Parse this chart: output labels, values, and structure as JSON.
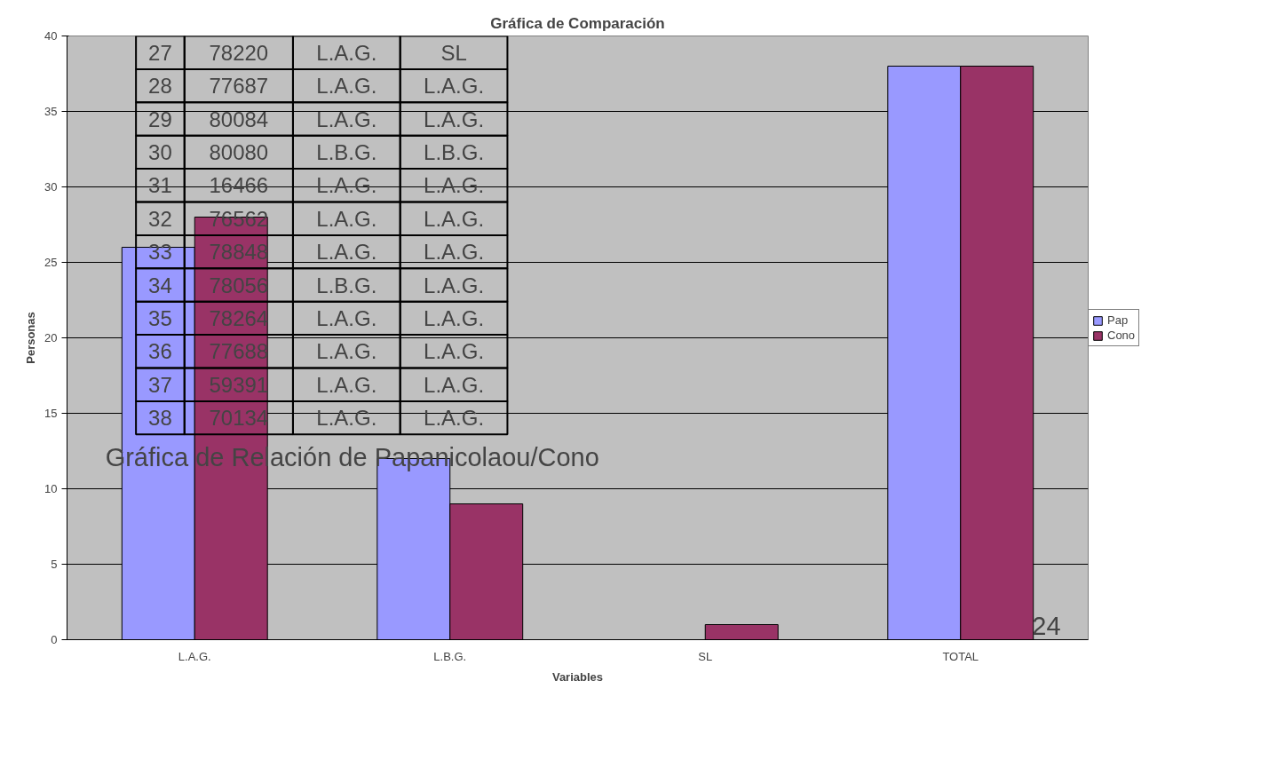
{
  "chart_data": {
    "type": "bar",
    "title": "Gráfica de Comparación",
    "xlabel": "Variables",
    "ylabel": "Personas",
    "categories": [
      "L.A.G.",
      "L.B.G.",
      "SL",
      "TOTAL"
    ],
    "series": [
      {
        "name": "Pap",
        "color": "#9999ff",
        "values": [
          26,
          12,
          null,
          38
        ]
      },
      {
        "name": "Cono",
        "color": "#993366",
        "values": [
          28,
          9,
          1,
          38
        ]
      }
    ],
    "ylim": [
      0,
      40
    ],
    "yticks": [
      0,
      5,
      10,
      15,
      20,
      25,
      30,
      35,
      40
    ],
    "grid": "y",
    "legend": "right",
    "annotations": [
      "27",
      "78220",
      "L.A.G.",
      "SL",
      "28",
      "77687",
      "L.A.G.",
      "L.A.G.",
      "29",
      "80084",
      "L.A.G.",
      "L.A.G.",
      "30",
      "80080",
      "L.B.G.",
      "L.B.G.",
      "31",
      "16466",
      "L.A.G.",
      "L.A.G.",
      "32",
      "76562",
      "L.A.G.",
      "L.A.G.",
      "33",
      "78848",
      "L.A.G.",
      "L.A.G.",
      "34",
      "78056",
      "L.B.G.",
      "L.A.G.",
      "35",
      "78264",
      "L.A.G.",
      "L.A.G.",
      "36",
      "77688",
      "L.A.G.",
      "L.A.G.",
      "37",
      "59391",
      "L.A.G.",
      "L.A.G.",
      "38",
      "70134",
      "L.A.G.",
      "L.A.G.",
      "Gráfica de Relación de Papanicolaou/Cono",
      "24"
    ]
  }
}
